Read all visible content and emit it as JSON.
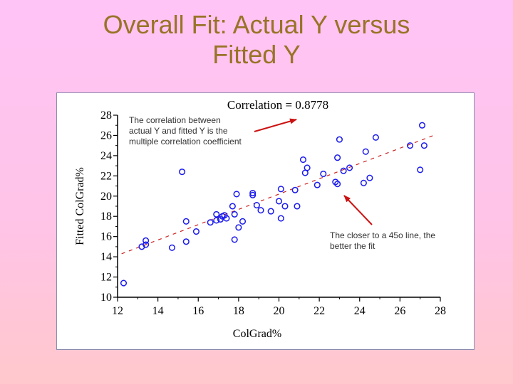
{
  "slide": {
    "title_line1": "Overall Fit:  Actual Y versus",
    "title_line2": "Fitted Y"
  },
  "chart_data": {
    "type": "scatter",
    "title": "Correlation = 0.8778",
    "xlabel": "ColGrad%",
    "ylabel": "Fitted ColGrad%",
    "xlim": [
      12,
      28
    ],
    "ylim": [
      10,
      28
    ],
    "xticks": [
      "12",
      "14",
      "16",
      "18",
      "20",
      "22",
      "24",
      "26",
      "28"
    ],
    "yticks": [
      "10",
      "12",
      "14",
      "16",
      "18",
      "20",
      "22",
      "24",
      "26",
      "28"
    ],
    "reference_line": {
      "style": "dashed",
      "color": "#cc2222",
      "points": [
        [
          12.2,
          14.3
        ],
        [
          27.8,
          26.1
        ]
      ]
    },
    "point_color": "#1a1aee",
    "points": [
      [
        12.3,
        11.4
      ],
      [
        13.2,
        15.0
      ],
      [
        13.4,
        15.6
      ],
      [
        13.4,
        15.2
      ],
      [
        14.7,
        14.9
      ],
      [
        15.2,
        22.4
      ],
      [
        15.4,
        17.5
      ],
      [
        15.4,
        15.5
      ],
      [
        15.9,
        16.5
      ],
      [
        16.6,
        17.4
      ],
      [
        16.9,
        18.2
      ],
      [
        16.9,
        17.6
      ],
      [
        17.1,
        17.7
      ],
      [
        17.2,
        18.0
      ],
      [
        17.4,
        17.8
      ],
      [
        17.3,
        18.1
      ],
      [
        17.7,
        19.0
      ],
      [
        17.8,
        18.2
      ],
      [
        17.8,
        15.7
      ],
      [
        17.9,
        20.2
      ],
      [
        18.0,
        16.9
      ],
      [
        18.2,
        17.5
      ],
      [
        18.7,
        20.3
      ],
      [
        18.7,
        20.1
      ],
      [
        18.9,
        19.1
      ],
      [
        19.1,
        18.6
      ],
      [
        19.6,
        18.5
      ],
      [
        20.0,
        19.5
      ],
      [
        20.1,
        20.7
      ],
      [
        20.1,
        17.8
      ],
      [
        20.3,
        19.0
      ],
      [
        20.8,
        20.6
      ],
      [
        20.9,
        19.0
      ],
      [
        21.2,
        23.6
      ],
      [
        21.3,
        22.3
      ],
      [
        21.4,
        22.8
      ],
      [
        21.9,
        21.1
      ],
      [
        22.2,
        22.2
      ],
      [
        22.8,
        21.4
      ],
      [
        22.9,
        23.8
      ],
      [
        22.9,
        21.2
      ],
      [
        23.0,
        25.6
      ],
      [
        23.2,
        22.5
      ],
      [
        23.5,
        22.8
      ],
      [
        24.2,
        21.3
      ],
      [
        24.3,
        24.4
      ],
      [
        24.5,
        21.8
      ],
      [
        24.8,
        25.8
      ],
      [
        26.5,
        25.0
      ],
      [
        27.0,
        22.6
      ],
      [
        27.1,
        27.0
      ],
      [
        27.2,
        25.0
      ]
    ],
    "annotations": [
      {
        "text": "The correlation between actual Y and fitted Y is the multiple correlation coefficient",
        "arrow_to": "title"
      },
      {
        "text": "The closer to a 45o line, the better the fit",
        "arrow_to": "reference_line"
      }
    ]
  }
}
